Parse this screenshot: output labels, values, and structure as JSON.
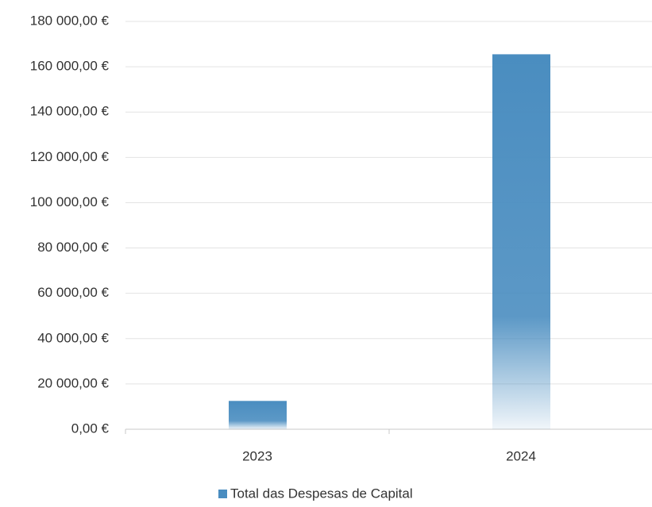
{
  "chart_data": {
    "type": "bar",
    "categories": [
      "2023",
      "2024"
    ],
    "series": [
      {
        "name": "Total das Despesas de Capital",
        "color": "#4a8dc0",
        "values": [
          12500,
          165500
        ]
      }
    ],
    "ylim": [
      0,
      180000
    ],
    "yticks": [
      {
        "value": 0,
        "label": "0,00 €"
      },
      {
        "value": 20000,
        "label": "20 000,00 €"
      },
      {
        "value": 40000,
        "label": "40 000,00 €"
      },
      {
        "value": 60000,
        "label": "60 000,00 €"
      },
      {
        "value": 80000,
        "label": "80 000,00 €"
      },
      {
        "value": 100000,
        "label": "100 000,00 €"
      },
      {
        "value": 120000,
        "label": "120 000,00 €"
      },
      {
        "value": 140000,
        "label": "140 000,00 €"
      },
      {
        "value": 160000,
        "label": "160 000,00 €"
      },
      {
        "value": 180000,
        "label": "180 000,00 €"
      }
    ],
    "grid": true,
    "legend": "bottom"
  }
}
